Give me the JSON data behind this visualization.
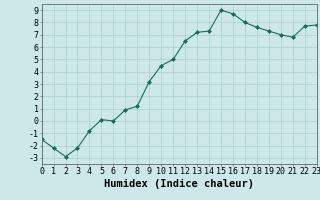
{
  "x": [
    0,
    1,
    2,
    3,
    4,
    5,
    6,
    7,
    8,
    9,
    10,
    11,
    12,
    13,
    14,
    15,
    16,
    17,
    18,
    19,
    20,
    21,
    22,
    23
  ],
  "y": [
    -1.5,
    -2.2,
    -2.9,
    -2.2,
    -0.8,
    0.1,
    0.0,
    0.9,
    1.2,
    3.2,
    4.5,
    5.0,
    6.5,
    7.2,
    7.3,
    9.0,
    8.7,
    8.0,
    7.6,
    7.3,
    7.0,
    6.8,
    7.7,
    7.8
  ],
  "line_color": "#1a6b5a",
  "marker": "D",
  "marker_size": 2.0,
  "bg_color": "#cce8e8",
  "grid_color": "#aacece",
  "xlabel": "Humidex (Indice chaleur)",
  "xlim": [
    0,
    23
  ],
  "ylim": [
    -3.5,
    9.5
  ],
  "xtick_labels": [
    "0",
    "1",
    "2",
    "3",
    "4",
    "5",
    "6",
    "7",
    "8",
    "9",
    "10",
    "11",
    "12",
    "13",
    "14",
    "15",
    "16",
    "17",
    "18",
    "19",
    "20",
    "21",
    "22",
    "23"
  ],
  "ytick_values": [
    -3,
    -2,
    -1,
    0,
    1,
    2,
    3,
    4,
    5,
    6,
    7,
    8,
    9
  ],
  "xlabel_fontsize": 7.5,
  "tick_fontsize": 6.0
}
